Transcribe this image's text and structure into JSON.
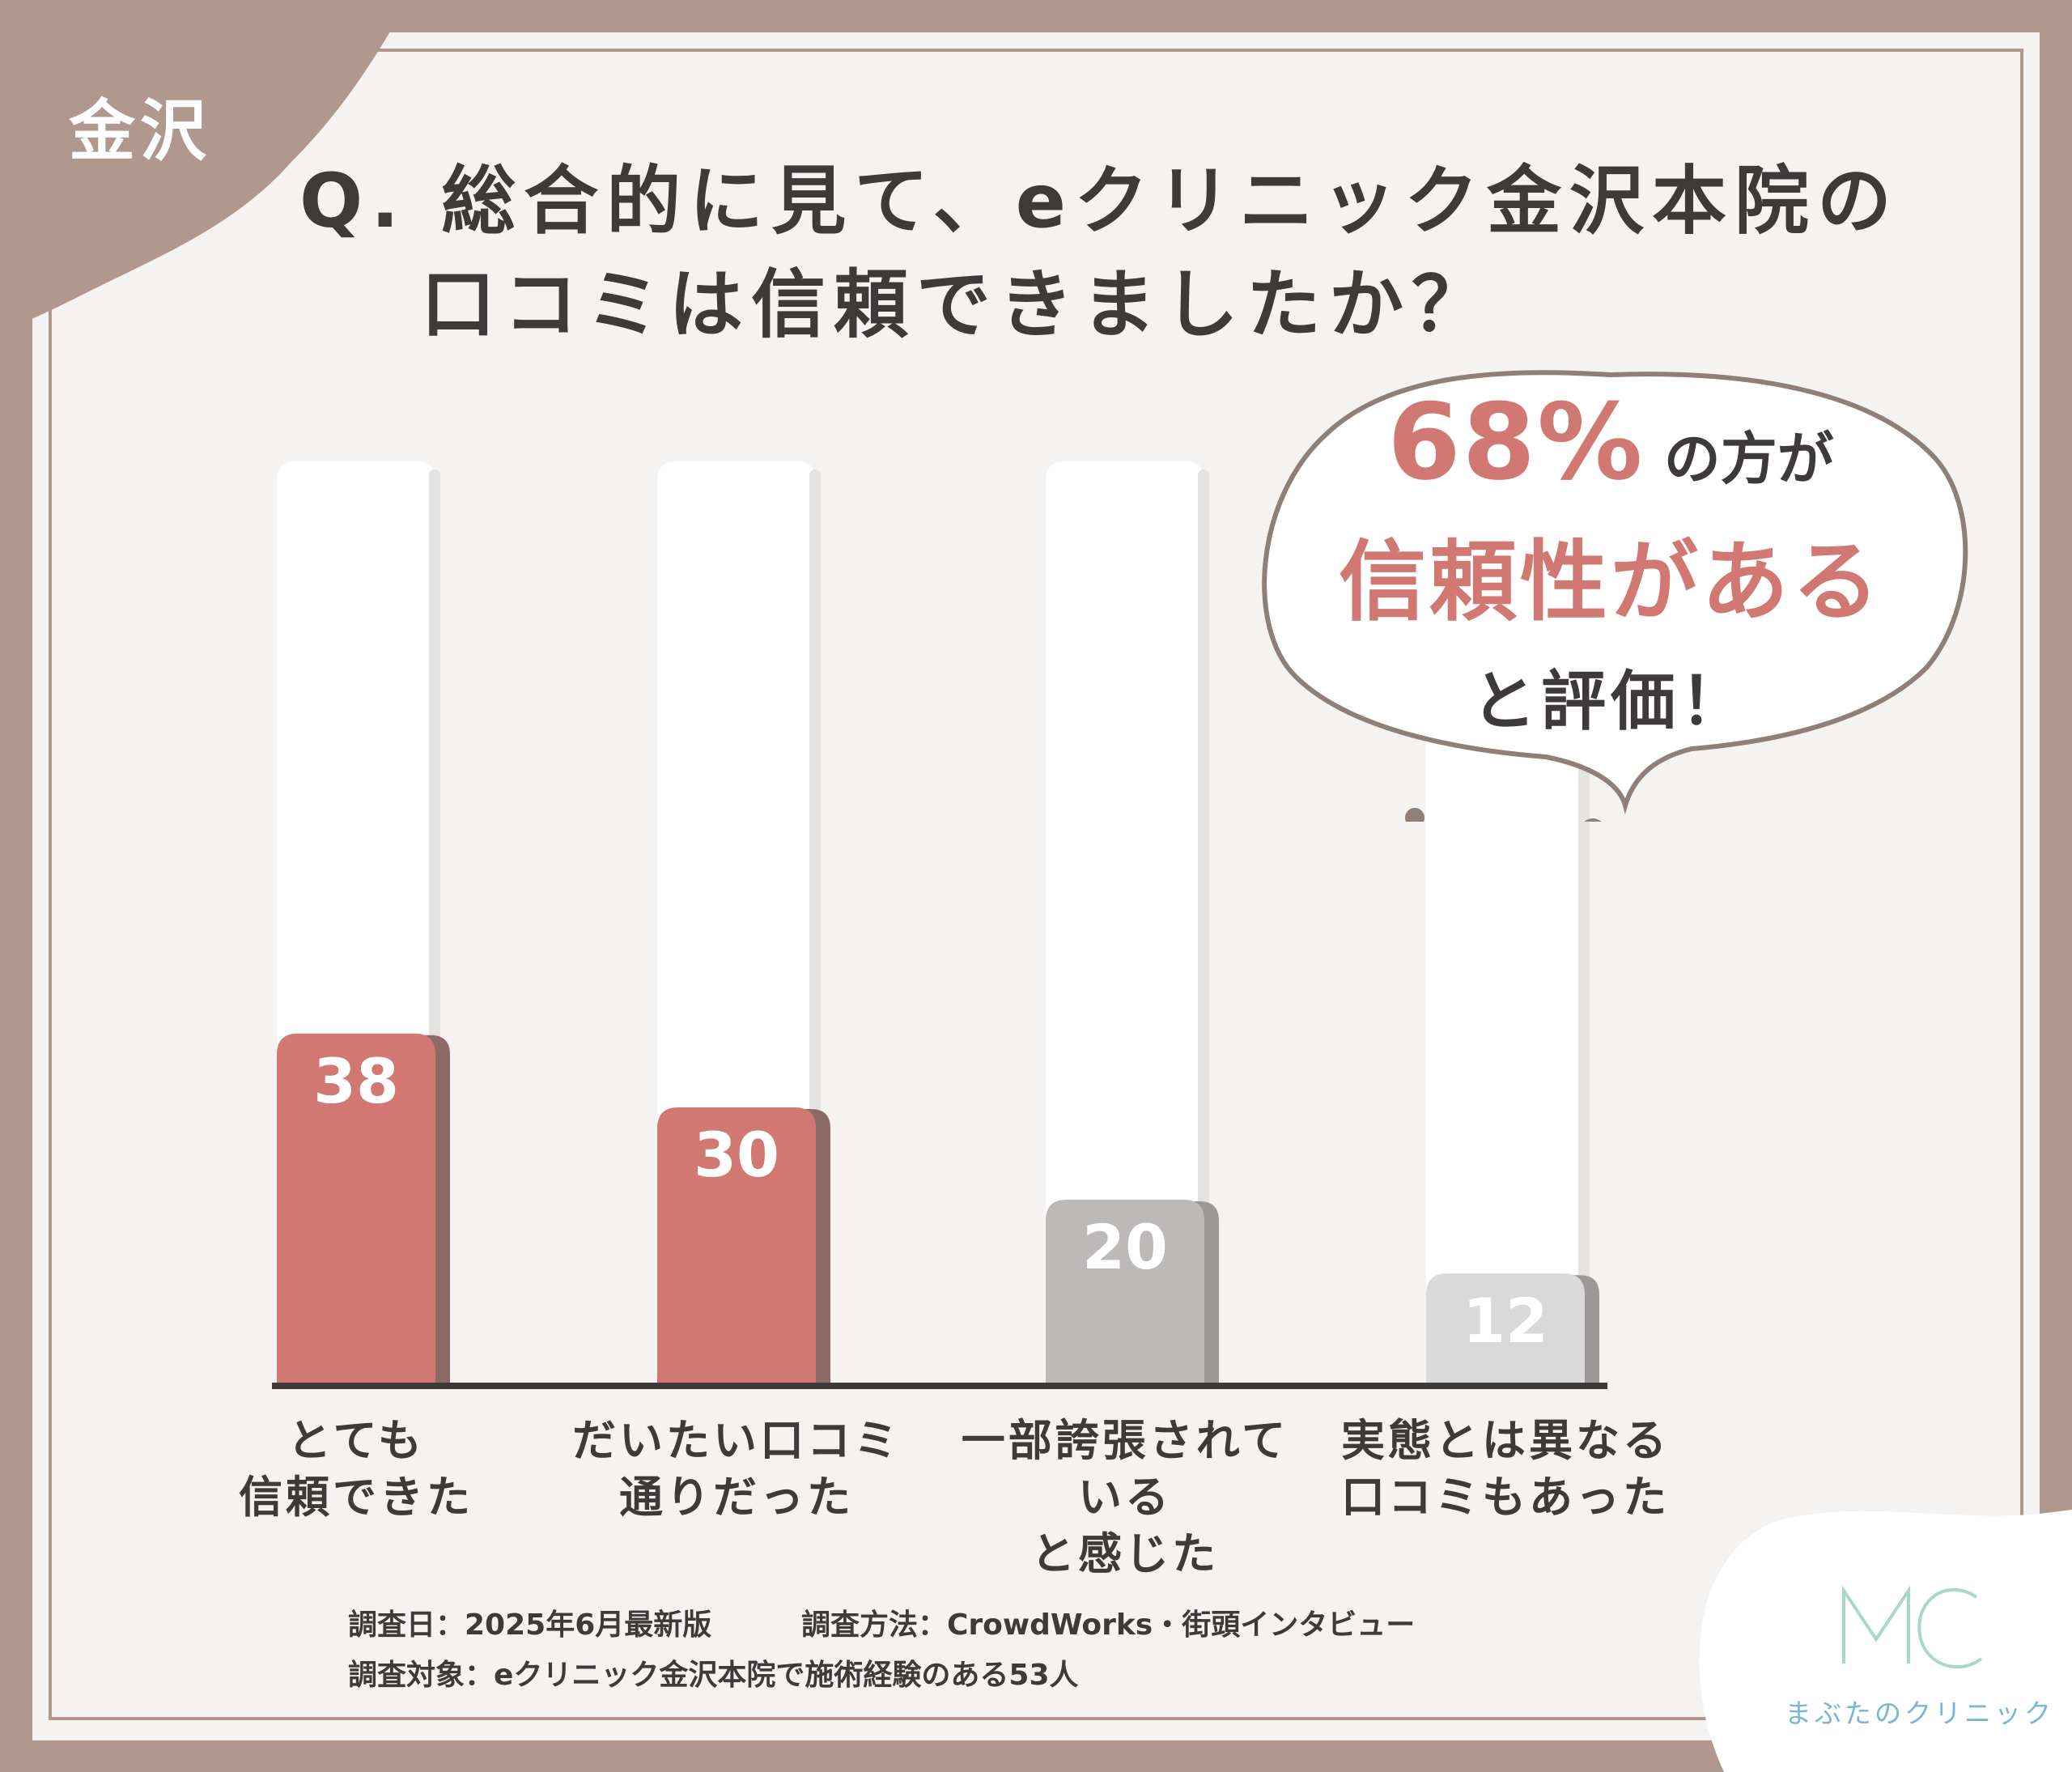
{
  "tag": "金沢",
  "question": {
    "line1": "Q. 総合的に見て、eクリニック金沢本院の",
    "line2": "口コミは信頼できましたか？"
  },
  "callout": {
    "percent": "68%",
    "line1_suffix": "の方が",
    "line2": "信頼性がある",
    "line3": "と評価！"
  },
  "chart_data": {
    "type": "bar",
    "categories": [
      "とても\n信頼できた",
      "だいたい口コミ\n通りだった",
      "一部誇張されている\nと感じた",
      "実態とは異なる\n口コミもあった"
    ],
    "category_lines": [
      [
        "とても",
        "信頼できた"
      ],
      [
        "だいたい口コミ",
        "通りだった"
      ],
      [
        "一部誇張されている",
        "と感じた"
      ],
      [
        "実態とは異なる",
        "口コミもあった"
      ]
    ],
    "values": [
      38,
      30,
      20,
      12
    ],
    "bar_colors": [
      "#d17872",
      "#d17872",
      "#bcb9b8",
      "#d9d9d9"
    ],
    "ylim": [
      0,
      100
    ],
    "grid": false,
    "title": "",
    "xlabel": "",
    "ylabel": ""
  },
  "footer": {
    "date": "調査日：2025年6月最新版",
    "method": "調査方法：CrowdWorks・街頭インタビュー",
    "target": "調査対象：eクリニック金沢本院で施術経験のある53人"
  },
  "logo": {
    "mark": "MC",
    "name": "まぶたのクリニック"
  },
  "colors": {
    "frame": "#b0988e",
    "accent": "#d17872",
    "text": "#3d3a39",
    "logo": "#7ab6d4"
  }
}
